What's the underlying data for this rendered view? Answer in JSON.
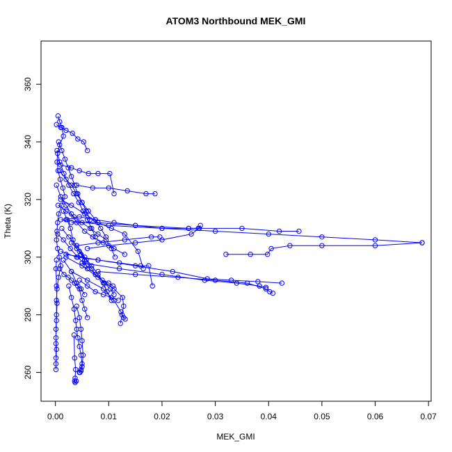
{
  "chart_data": {
    "type": "scatter",
    "title": "ATOM3 Northbound MEK_GMI",
    "xlabel": "MEK_GMI",
    "ylabel": "Theta (K)",
    "xlim": [
      -0.0027,
      0.0705
    ],
    "ylim": [
      250,
      375
    ],
    "xticks": [
      0,
      0.01,
      0.02,
      0.03,
      0.04,
      0.05,
      0.06,
      0.07
    ],
    "xtick_labels": [
      "0.00",
      "0.01",
      "0.02",
      "0.03",
      "0.04",
      "0.05",
      "0.06",
      "0.07"
    ],
    "yticks": [
      260,
      280,
      300,
      320,
      340,
      360
    ],
    "ytick_labels": [
      "260",
      "280",
      "300",
      "320",
      "340",
      "360"
    ],
    "grid": false,
    "legend": "none",
    "marker": "open-circle",
    "connected": true,
    "color": "#0000ff",
    "series": [
      {
        "x": [
          0.0005,
          0.0008,
          0.0012,
          0.0015,
          0.0008,
          0.0004,
          0.0003,
          0.0005,
          0.0009,
          0.0014,
          0.0018,
          0.0012,
          0.0006,
          0.0004,
          0.0003,
          0.0002,
          0.0004,
          0.0007,
          0.001,
          0.0006,
          0.0003,
          0.0002,
          0.0002,
          0.0001,
          0.0001,
          0.0001
        ],
        "y": [
          349,
          347,
          345,
          342,
          339,
          336,
          333,
          330,
          327,
          324,
          321,
          318,
          315,
          312,
          309,
          306,
          303,
          300,
          297,
          293,
          289,
          285,
          280,
          275,
          270,
          265
        ]
      },
      {
        "x": [
          0.0001,
          0.0001,
          0.0002,
          0.0001,
          0.0002,
          0.0003,
          0.0002,
          0.0001,
          0.0002
        ],
        "y": [
          261,
          263,
          268,
          272,
          278,
          284,
          290,
          296,
          299
        ]
      },
      {
        "x": [
          0.0002,
          0.001,
          0.002,
          0.0032,
          0.0042,
          0.0053,
          0.006
        ],
        "y": [
          346,
          345,
          344,
          343,
          341,
          340,
          337
        ]
      },
      {
        "x": [
          0.001,
          0.003,
          0.0045,
          0.0062,
          0.008,
          0.0102,
          0.011
        ],
        "y": [
          332,
          331,
          330,
          329,
          329,
          329,
          322
        ]
      },
      {
        "x": [
          0.004,
          0.007,
          0.01,
          0.0135,
          0.017,
          0.0187
        ],
        "y": [
          325,
          324,
          324,
          323,
          322,
          322
        ]
      },
      {
        "x": [
          0.002,
          0.0045,
          0.0075,
          0.011,
          0.015,
          0.02,
          0.025,
          0.0268,
          0.0272
        ],
        "y": [
          313,
          314,
          313,
          312,
          311,
          310,
          310,
          310,
          311
        ]
      },
      {
        "x": [
          0.003,
          0.008,
          0.015,
          0.025,
          0.035,
          0.042,
          0.0457
        ],
        "y": [
          312,
          312,
          311,
          310,
          310,
          309,
          309
        ]
      },
      {
        "x": [
          0.001,
          0.01,
          0.02,
          0.03,
          0.04,
          0.05,
          0.06,
          0.0688
        ],
        "y": [
          313,
          311,
          310,
          309,
          308,
          307,
          306,
          305
        ]
      },
      {
        "x": [
          0.0688,
          0.06,
          0.05,
          0.044,
          0.0405,
          0.0398,
          0.0366,
          0.032
        ],
        "y": [
          305,
          304,
          304,
          304,
          303,
          301,
          301,
          301
        ]
      },
      {
        "x": [
          0.004,
          0.008,
          0.013,
          0.018,
          0.0196
        ],
        "y": [
          304,
          305,
          306,
          307,
          307
        ]
      },
      {
        "x": [
          0.006,
          0.01,
          0.015,
          0.02,
          0.0255,
          0.027
        ],
        "y": [
          303,
          304,
          305,
          306,
          308,
          310
        ]
      },
      {
        "x": [
          0.002,
          0.008,
          0.015,
          0.022,
          0.0285,
          0.033,
          0.038,
          0.0425
        ],
        "y": [
          301,
          299,
          297,
          295,
          292.5,
          292,
          291.5,
          291
        ]
      },
      {
        "x": [
          0.005,
          0.012,
          0.02,
          0.028,
          0.034,
          0.0383,
          0.0395
        ],
        "y": [
          298,
          296,
          294,
          292,
          291,
          290,
          289.5
        ]
      },
      {
        "x": [
          0.008,
          0.015,
          0.023,
          0.03,
          0.036,
          0.0395,
          0.0402,
          0.0408
        ],
        "y": [
          295,
          294,
          293,
          292,
          291,
          289,
          288,
          287.5
        ]
      },
      {
        "x": [
          0.001,
          0.004,
          0.008,
          0.012,
          0.016,
          0.0175,
          0.0182
        ],
        "y": [
          302,
          300,
          299,
          298,
          297,
          297,
          290
        ]
      },
      {
        "x": [
          0.002,
          0.005,
          0.008,
          0.011,
          0.0126,
          0.0128,
          0.0125,
          0.0122
        ],
        "y": [
          300,
          297,
          293,
          289,
          286,
          283,
          280,
          277
        ]
      },
      {
        "x": [
          0.003,
          0.006,
          0.009,
          0.011,
          0.0123,
          0.0128,
          0.0131
        ],
        "y": [
          295,
          292,
          289,
          285,
          281,
          279,
          278.5
        ]
      },
      {
        "x": [
          0.0015,
          0.003,
          0.004,
          0.0045,
          0.005,
          0.0055,
          0.006
        ],
        "y": [
          299,
          295,
          291,
          289,
          285,
          282,
          279
        ]
      },
      {
        "x": [
          0.0025,
          0.003,
          0.0035,
          0.0038,
          0.004,
          0.0042,
          0.0045,
          0.0048,
          0.005,
          0.0048,
          0.0045
        ],
        "y": [
          290,
          286,
          282,
          278,
          275,
          272,
          269,
          266,
          263,
          261,
          260
        ]
      },
      {
        "x": [
          0.0035,
          0.0036,
          0.0038,
          0.0037,
          0.0036,
          0.0037,
          0.0039
        ],
        "y": [
          273,
          265,
          261,
          258,
          257,
          256.5,
          257
        ]
      },
      {
        "x": [
          0.004,
          0.0045,
          0.0048,
          0.005,
          0.0052,
          0.005,
          0.0048,
          0.0046
        ],
        "y": [
          283,
          279,
          275,
          271,
          266,
          262,
          260.5,
          260
        ]
      },
      {
        "x": [
          0.0005,
          0.002,
          0.0035,
          0.005,
          0.0065,
          0.008,
          0.0095,
          0.0105,
          0.0112
        ],
        "y": [
          318,
          316,
          314,
          312,
          310,
          308,
          306,
          303,
          300
        ]
      },
      {
        "x": [
          0.0008,
          0.002,
          0.003,
          0.004,
          0.005,
          0.0062,
          0.0075,
          0.0085,
          0.0095
        ],
        "y": [
          330,
          327,
          325,
          322,
          319,
          316,
          313,
          310,
          307
        ]
      },
      {
        "x": [
          0.0002,
          0.001,
          0.002,
          0.003,
          0.004,
          0.0055,
          0.007,
          0.009,
          0.011,
          0.013
        ],
        "y": [
          325,
          321,
          318,
          315,
          312,
          309,
          307,
          305,
          303,
          301
        ]
      },
      {
        "x": [
          0.001,
          0.003,
          0.0055,
          0.008,
          0.0105,
          0.013,
          0.0155,
          0.0165
        ],
        "y": [
          320,
          318,
          315,
          312,
          310,
          308,
          302,
          296
        ]
      },
      {
        "x": [
          0.0004,
          0.0015,
          0.0028,
          0.0042,
          0.0058,
          0.0075,
          0.0092,
          0.0103,
          0.011
        ],
        "y": [
          308,
          306,
          303,
          300,
          297,
          294,
          291,
          289,
          287
        ]
      },
      {
        "x": [
          0.0012,
          0.0025,
          0.004,
          0.0055,
          0.0068,
          0.008,
          0.009,
          0.0097,
          0.0105
        ],
        "y": [
          310,
          307,
          304,
          300,
          297,
          294,
          291,
          288,
          285
        ]
      },
      {
        "x": [
          0.003,
          0.0045,
          0.0058,
          0.0068,
          0.0075,
          0.0088,
          0.01,
          0.0108
        ],
        "y": [
          305,
          302,
          299,
          296,
          294,
          292,
          291,
          290
        ]
      },
      {
        "x": [
          0.0006,
          0.0012,
          0.0018,
          0.0024,
          0.003,
          0.0036,
          0.0042,
          0.005,
          0.0058,
          0.0065
        ],
        "y": [
          340,
          337,
          334,
          331,
          328,
          325,
          322,
          319,
          316,
          313
        ]
      },
      {
        "x": [
          0.0003,
          0.0008,
          0.0016,
          0.0025,
          0.0034,
          0.0044,
          0.0052,
          0.006,
          0.0068,
          0.0075
        ],
        "y": [
          337,
          333,
          329,
          325,
          322,
          319,
          316,
          313,
          310,
          307
        ]
      },
      {
        "x": [
          0.0015,
          0.0022,
          0.0028,
          0.0033,
          0.004,
          0.0048,
          0.0055,
          0.006
        ],
        "y": [
          316,
          313,
          310,
          306,
          303,
          301,
          299,
          296
        ]
      },
      {
        "x": [
          0.0008,
          0.0016,
          0.0024,
          0.003,
          0.0036,
          0.0042,
          0.0048,
          0.0055
        ],
        "y": [
          296,
          294,
          293,
          292,
          291,
          290,
          289,
          287
        ]
      },
      {
        "x": [
          0.0045,
          0.006,
          0.0075,
          0.009,
          0.0105,
          0.0118
        ],
        "y": [
          292,
          290,
          288,
          287,
          286,
          285
        ]
      }
    ]
  }
}
